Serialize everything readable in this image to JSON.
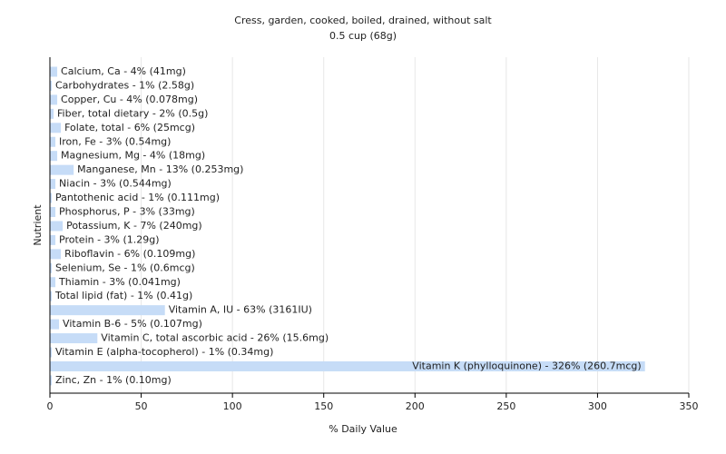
{
  "chart_data": {
    "type": "bar",
    "orientation": "horizontal",
    "title": "Cress, garden, cooked, boiled, drained, without salt",
    "subtitle": "0.5 cup (68g)",
    "x_label": "% Daily Value",
    "y_label": "Nutrient",
    "categories": [
      "Calcium, Ca - 4% (41mg)",
      "Carbohydrates - 1% (2.58g)",
      "Copper, Cu - 4% (0.078mg)",
      "Fiber, total dietary - 2% (0.5g)",
      "Folate, total - 6% (25mcg)",
      "Iron, Fe - 3% (0.54mg)",
      "Magnesium, Mg - 4% (18mg)",
      "Manganese, Mn - 13% (0.253mg)",
      "Niacin - 3% (0.544mg)",
      "Pantothenic acid - 1% (0.111mg)",
      "Phosphorus, P - 3% (33mg)",
      "Potassium, K - 7% (240mg)",
      "Protein - 3% (1.29g)",
      "Riboflavin - 6% (0.109mg)",
      "Selenium, Se - 1% (0.6mcg)",
      "Thiamin - 3% (0.041mg)",
      "Total lipid (fat) - 1% (0.41g)",
      "Vitamin A, IU - 63% (3161IU)",
      "Vitamin B-6 - 5% (0.107mg)",
      "Vitamin C, total ascorbic acid - 26% (15.6mg)",
      "Vitamin E (alpha-tocopherol) - 1% (0.34mg)",
      "Vitamin K (phylloquinone) - 326% (260.7mcg)",
      "Zinc, Zn - 1% (0.10mg)"
    ],
    "values": [
      4,
      1,
      4,
      2,
      6,
      3,
      4,
      13,
      3,
      1,
      3,
      7,
      3,
      6,
      1,
      3,
      1,
      63,
      5,
      26,
      1,
      326,
      1
    ],
    "color": "#c6dcf7",
    "xlim": [
      0,
      350
    ],
    "xticks": [
      0,
      50,
      100,
      150,
      200,
      250,
      300,
      350
    ],
    "grid": true
  }
}
